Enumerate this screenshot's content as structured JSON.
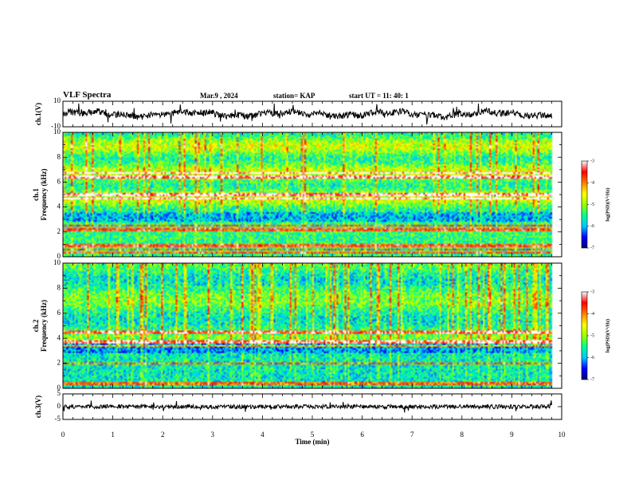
{
  "header": {
    "title": "VLF Spectra",
    "date": "Mar.9  , 2024",
    "station": "station= KAP",
    "start": "start  UT  =   11: 40: 1"
  },
  "chart_data": [
    {
      "type": "line",
      "panel": "ch1-waveform",
      "ylabel": "ch.1(V)",
      "ylim": [
        -10,
        10
      ],
      "yticks": [
        "10",
        "-10"
      ],
      "xlim": [
        0,
        10
      ],
      "data_end": 9.8
    },
    {
      "type": "heatmap",
      "panel": "ch1-spectrogram",
      "ylabel_lines": [
        "ch.1",
        "Frequency  (kHz)"
      ],
      "ylim": [
        0,
        10
      ],
      "yticks": [
        "0",
        "2",
        "4",
        "6",
        "8",
        "10"
      ],
      "xlim": [
        0,
        10
      ],
      "data_end": 9.8,
      "colorbar": {
        "label": "log(PSD)(V²/Hz)",
        "range": [
          -7,
          -3
        ],
        "ticks": [
          "-3",
          "-4",
          "-5",
          "-6",
          "-7"
        ]
      },
      "bright_bands_khz": [
        0.3,
        0.6,
        0.9,
        2.2,
        2.5,
        4.7,
        5.0,
        6.4,
        6.7
      ]
    },
    {
      "type": "heatmap",
      "panel": "ch2-spectrogram",
      "ylabel_lines": [
        "ch.2",
        "Frequency  (kHz)"
      ],
      "ylim": [
        0,
        10
      ],
      "yticks": [
        "0",
        "2",
        "4",
        "6",
        "8",
        "10"
      ],
      "xlim": [
        0,
        10
      ],
      "data_end": 9.8,
      "colorbar": {
        "label": "log(PSD)(V²/Hz)",
        "range": [
          -7,
          -3
        ],
        "ticks": [
          "-3",
          "-4",
          "-5",
          "-6",
          "-7"
        ]
      },
      "bright_bands_khz": [
        0.4,
        2.0,
        3.4,
        3.7,
        4.5
      ]
    },
    {
      "type": "line",
      "panel": "ch3-waveform",
      "ylabel": "ch.3(V)",
      "ylim": [
        -5,
        5
      ],
      "yticks": [
        "5",
        "0",
        "-5"
      ],
      "xlim": [
        0,
        10
      ],
      "data_end": 9.8,
      "xlabel": "Time  (min)",
      "xticks": [
        "0",
        "1",
        "2",
        "3",
        "4",
        "5",
        "6",
        "7",
        "8",
        "9",
        "10"
      ]
    }
  ],
  "colors": {
    "axis": "#000000",
    "trace": "#000000",
    "colormap": [
      "#00007a",
      "#0000ff",
      "#00c8ff",
      "#00ff90",
      "#a0ff00",
      "#ffff00",
      "#ff8000",
      "#ff0000",
      "#ffffff"
    ]
  }
}
